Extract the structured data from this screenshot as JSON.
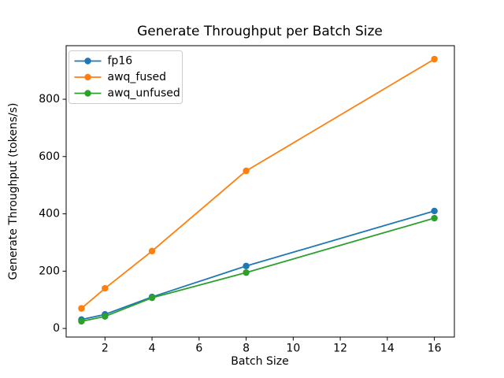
{
  "chart_data": {
    "type": "line",
    "title": "Generate Throughput per Batch Size",
    "xlabel": "Batch Size",
    "ylabel": "Generate Throughput (tokens/s)",
    "x": [
      1,
      2,
      4,
      8,
      16
    ],
    "series": [
      {
        "name": "fp16",
        "color": "#1f77b4",
        "values": [
          31,
          49,
          110,
          218,
          410
        ]
      },
      {
        "name": "awq_fused",
        "color": "#ff7f0e",
        "values": [
          70,
          140,
          270,
          550,
          940
        ]
      },
      {
        "name": "awq_unfused",
        "color": "#2ca02c",
        "values": [
          25,
          42,
          107,
          195,
          385
        ]
      }
    ],
    "xticks": [
      2,
      4,
      6,
      8,
      10,
      12,
      14,
      16
    ],
    "yticks": [
      0,
      200,
      400,
      600,
      800
    ],
    "xlim": [
      0.35,
      16.85
    ],
    "ylim": [
      -30,
      987
    ],
    "legend_position": "upper left",
    "grid": false,
    "marker": "o",
    "line_color_axis": "#000000",
    "legend_edge_color": "#cccccc"
  }
}
